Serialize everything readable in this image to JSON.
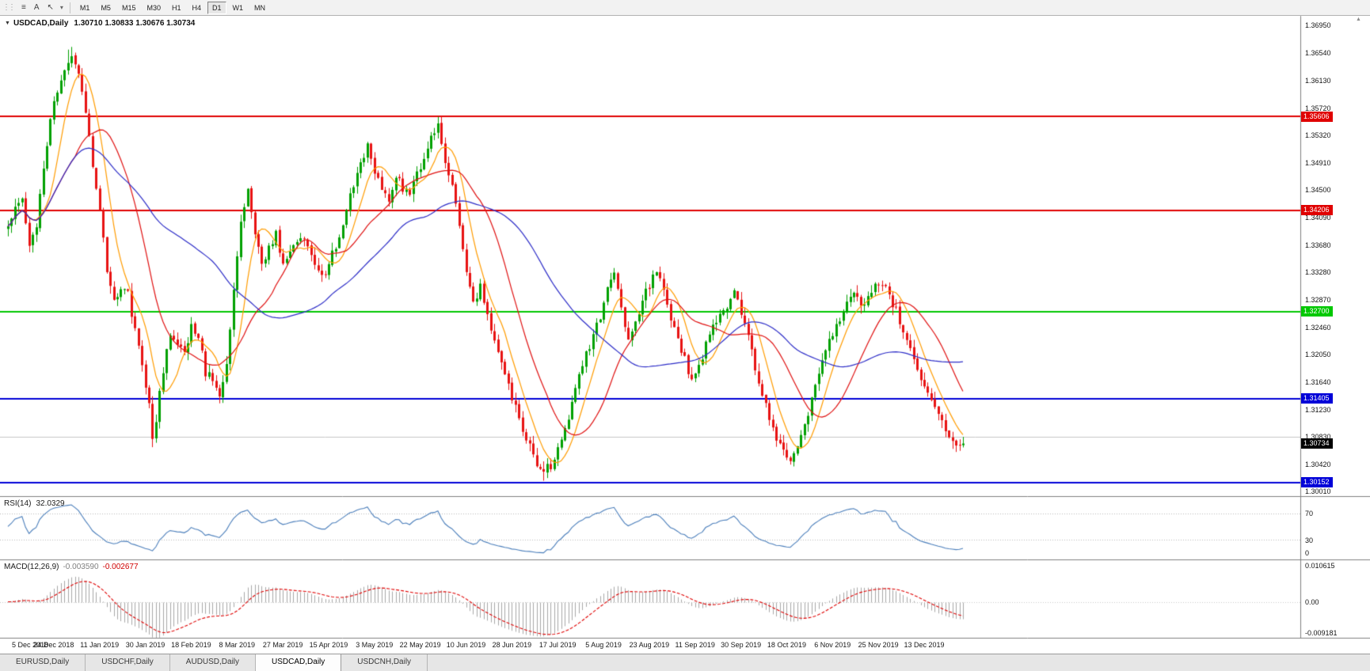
{
  "icons": {
    "collapse": "▼",
    "grip": "⋮⋮",
    "chart_menu": "≡",
    "text_tool": "A",
    "cursor_tool": "↖",
    "dropdown": "▾",
    "shift_marker": "▲"
  },
  "toolbar": {
    "timeframes": [
      "M1",
      "M5",
      "M15",
      "M30",
      "H1",
      "H4",
      "D1",
      "W1",
      "MN"
    ],
    "active_timeframe": "D1"
  },
  "chart": {
    "symbol_title": "USDCAD,Daily",
    "ohlc_text": "1.30710 1.30833 1.30676 1.30734",
    "price_axis_labels": [
      "1.36950",
      "1.36540",
      "1.36130",
      "1.35720",
      "1.35320",
      "1.34910",
      "1.34500",
      "1.34090",
      "1.33680",
      "1.33280",
      "1.32870",
      "1.32460",
      "1.32050",
      "1.31640",
      "1.31230",
      "1.30830",
      "1.30420",
      "1.30010"
    ],
    "grid_line_price": 1.3083,
    "levels": [
      {
        "label": "1.35606",
        "price": 1.35606,
        "color": "#e00000"
      },
      {
        "label": "1.34206",
        "price": 1.34206,
        "color": "#e00000"
      },
      {
        "label": "1.32700",
        "price": 1.327,
        "color": "#00c800"
      },
      {
        "label": "1.31405",
        "price": 1.31405,
        "color": "#0000d8"
      },
      {
        "label": "1.30152",
        "price": 1.30152,
        "color": "#0000d8"
      }
    ],
    "current_price_tag": {
      "label": "1.30734",
      "price": 1.30734,
      "color": "#000000"
    },
    "date_axis_labels": [
      "5 Dec 2018",
      "24 Dec 2018",
      "11 Jan 2019",
      "30 Jan 2019",
      "18 Feb 2019",
      "8 Mar 2019",
      "27 Mar 2019",
      "15 Apr 2019",
      "3 May 2019",
      "22 May 2019",
      "10 Jun 2019",
      "28 Jun 2019",
      "17 Jul 2019",
      "5 Aug 2019",
      "23 Aug 2019",
      "11 Sep 2019",
      "30 Sep 2019",
      "18 Oct 2019",
      "6 Nov 2019",
      "25 Nov 2019",
      "13 Dec 2019"
    ]
  },
  "chart_data": {
    "type": "candlestick",
    "symbol": "USDCAD",
    "timeframe": "Daily",
    "bars": 272,
    "price_range": [
      1.29951,
      1.37103
    ],
    "last_bar": {
      "open": 1.3071,
      "high": 1.30833,
      "low": 1.30676,
      "close": 1.30734
    },
    "up_color": "#00a000",
    "down_color": "#e81212",
    "moving_averages": [
      {
        "period": 8,
        "color": "#ff9c00"
      },
      {
        "period": 20,
        "color": "#e01010"
      },
      {
        "period": 50,
        "color": "#2d2dc8"
      }
    ],
    "close_waypoints": [
      [
        0,
        1.339
      ],
      [
        2,
        1.342
      ],
      [
        4,
        1.3435
      ],
      [
        6,
        1.3365
      ],
      [
        8,
        1.34
      ],
      [
        10,
        1.348
      ],
      [
        12,
        1.356
      ],
      [
        14,
        1.36
      ],
      [
        16,
        1.363
      ],
      [
        18,
        1.3652
      ],
      [
        20,
        1.363
      ],
      [
        22,
        1.3565
      ],
      [
        24,
        1.349
      ],
      [
        26,
        1.342
      ],
      [
        28,
        1.333
      ],
      [
        30,
        1.3285
      ],
      [
        32,
        1.331
      ],
      [
        34,
        1.3295
      ],
      [
        36,
        1.324
      ],
      [
        38,
        1.3195
      ],
      [
        40,
        1.313
      ],
      [
        41,
        1.3085
      ],
      [
        42,
        1.311
      ],
      [
        44,
        1.318
      ],
      [
        46,
        1.3235
      ],
      [
        48,
        1.322
      ],
      [
        50,
        1.3205
      ],
      [
        52,
        1.325
      ],
      [
        54,
        1.3235
      ],
      [
        56,
        1.318
      ],
      [
        58,
        1.317
      ],
      [
        60,
        1.315
      ],
      [
        62,
        1.3185
      ],
      [
        64,
        1.33
      ],
      [
        66,
        1.34
      ],
      [
        68,
        1.3448
      ],
      [
        70,
        1.339
      ],
      [
        72,
        1.3335
      ],
      [
        74,
        1.3365
      ],
      [
        76,
        1.3385
      ],
      [
        78,
        1.334
      ],
      [
        80,
        1.3355
      ],
      [
        82,
        1.3375
      ],
      [
        84,
        1.3385
      ],
      [
        86,
        1.335
      ],
      [
        88,
        1.3325
      ],
      [
        90,
        1.333
      ],
      [
        92,
        1.3355
      ],
      [
        94,
        1.3385
      ],
      [
        96,
        1.3425
      ],
      [
        98,
        1.3455
      ],
      [
        100,
        1.349
      ],
      [
        102,
        1.3515
      ],
      [
        104,
        1.348
      ],
      [
        106,
        1.3445
      ],
      [
        108,
        1.344
      ],
      [
        110,
        1.3475
      ],
      [
        112,
        1.3455
      ],
      [
        114,
        1.345
      ],
      [
        116,
        1.3475
      ],
      [
        118,
        1.35
      ],
      [
        120,
        1.3525
      ],
      [
        122,
        1.3548
      ],
      [
        124,
        1.3495
      ],
      [
        126,
        1.3455
      ],
      [
        128,
        1.34
      ],
      [
        130,
        1.333
      ],
      [
        132,
        1.328
      ],
      [
        134,
        1.3305
      ],
      [
        136,
        1.327
      ],
      [
        138,
        1.3225
      ],
      [
        140,
        1.319
      ],
      [
        142,
        1.316
      ],
      [
        144,
        1.3125
      ],
      [
        146,
        1.3095
      ],
      [
        148,
        1.307
      ],
      [
        150,
        1.3045
      ],
      [
        152,
        1.3035
      ],
      [
        154,
        1.3042
      ],
      [
        156,
        1.307
      ],
      [
        158,
        1.3095
      ],
      [
        160,
        1.313
      ],
      [
        162,
        1.317
      ],
      [
        164,
        1.3205
      ],
      [
        166,
        1.3235
      ],
      [
        168,
        1.3265
      ],
      [
        170,
        1.33
      ],
      [
        172,
        1.333
      ],
      [
        174,
        1.327
      ],
      [
        176,
        1.3225
      ],
      [
        178,
        1.3255
      ],
      [
        180,
        1.3285
      ],
      [
        182,
        1.331
      ],
      [
        184,
        1.333
      ],
      [
        186,
        1.33
      ],
      [
        188,
        1.326
      ],
      [
        190,
        1.323
      ],
      [
        192,
        1.32
      ],
      [
        194,
        1.3165
      ],
      [
        196,
        1.3185
      ],
      [
        198,
        1.3225
      ],
      [
        200,
        1.325
      ],
      [
        202,
        1.3265
      ],
      [
        204,
        1.328
      ],
      [
        206,
        1.33
      ],
      [
        208,
        1.3265
      ],
      [
        210,
        1.323
      ],
      [
        212,
        1.3185
      ],
      [
        214,
        1.3145
      ],
      [
        216,
        1.311
      ],
      [
        218,
        1.308
      ],
      [
        220,
        1.3058
      ],
      [
        222,
        1.3048
      ],
      [
        224,
        1.3065
      ],
      [
        226,
        1.31
      ],
      [
        228,
        1.314
      ],
      [
        230,
        1.318
      ],
      [
        232,
        1.321
      ],
      [
        234,
        1.3235
      ],
      [
        236,
        1.326
      ],
      [
        238,
        1.3285
      ],
      [
        240,
        1.33
      ],
      [
        242,
        1.328
      ],
      [
        244,
        1.3295
      ],
      [
        246,
        1.331
      ],
      [
        248,
        1.3315
      ],
      [
        250,
        1.329
      ],
      [
        252,
        1.327
      ],
      [
        254,
        1.324
      ],
      [
        256,
        1.321
      ],
      [
        258,
        1.318
      ],
      [
        260,
        1.316
      ],
      [
        262,
        1.314
      ],
      [
        264,
        1.3115
      ],
      [
        266,
        1.309
      ],
      [
        268,
        1.3075
      ],
      [
        270,
        1.3068
      ],
      [
        271,
        1.30734
      ]
    ],
    "extremes": [
      {
        "bar": 17,
        "high": 1.366
      },
      {
        "bar": 18,
        "high": 1.3664
      },
      {
        "bar": 41,
        "low": 1.3068
      },
      {
        "bar": 122,
        "high": 1.356
      },
      {
        "bar": 152,
        "low": 1.3018
      },
      {
        "bar": 153,
        "low": 1.3022
      },
      {
        "bar": 222,
        "low": 1.3042
      }
    ]
  },
  "rsi": {
    "label": "RSI(14)",
    "value": "32.0329",
    "period": 14,
    "axis": [
      "70",
      "30",
      "0"
    ],
    "axis_values": [
      70,
      30,
      0
    ],
    "levels": [
      70,
      30
    ],
    "range": [
      0,
      95
    ],
    "line_color": "#4a7ebb"
  },
  "macd": {
    "label": "MACD(12,26,9)",
    "value_main": "-0.003590",
    "value_signal": "-0.002677",
    "fast": 12,
    "slow": 26,
    "signal": 9,
    "axis_top": "0.010615",
    "axis_zero": "0.00",
    "axis_bottom": "-0.009181",
    "range": [
      -0.009181,
      0.010615
    ],
    "histogram_color": "#a8a8a8",
    "signal_color": "#e00000"
  },
  "tabs": {
    "items": [
      "EURUSD,Daily",
      "USDCHF,Daily",
      "AUDUSD,Daily",
      "USDCAD,Daily",
      "USDCNH,Daily"
    ],
    "active": "USDCAD,Daily"
  }
}
